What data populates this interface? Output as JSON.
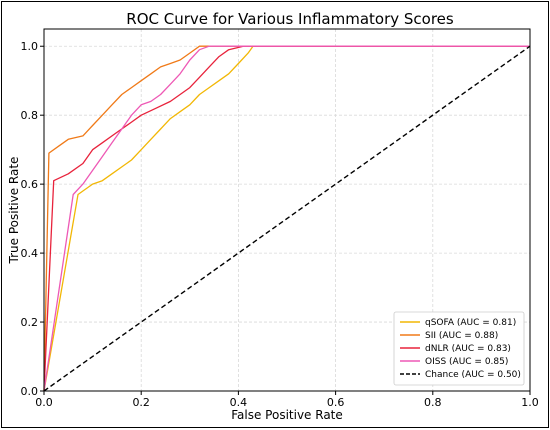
{
  "chart_data": {
    "type": "line",
    "title": "ROC Curve for Various Inflammatory Scores",
    "xlabel": "False Positive Rate",
    "ylabel": "True Positive Rate",
    "xlim": [
      0.0,
      1.0
    ],
    "ylim": [
      0.0,
      1.05
    ],
    "x_ticks": [
      "0.0",
      "0.2",
      "0.4",
      "0.6",
      "0.8",
      "1.0"
    ],
    "y_ticks": [
      "0.0",
      "0.2",
      "0.4",
      "0.6",
      "0.8",
      "1.0"
    ],
    "grid": true,
    "legend_position": "bottom-right",
    "series": [
      {
        "name": "qSOFA (AUC = 0.81)",
        "color": "#f2b705",
        "points": [
          [
            0,
            0
          ],
          [
            0.07,
            0.57
          ],
          [
            0.08,
            0.58
          ],
          [
            0.1,
            0.6
          ],
          [
            0.12,
            0.61
          ],
          [
            0.14,
            0.63
          ],
          [
            0.16,
            0.65
          ],
          [
            0.18,
            0.67
          ],
          [
            0.2,
            0.7
          ],
          [
            0.22,
            0.73
          ],
          [
            0.24,
            0.76
          ],
          [
            0.26,
            0.79
          ],
          [
            0.28,
            0.81
          ],
          [
            0.3,
            0.83
          ],
          [
            0.32,
            0.86
          ],
          [
            0.34,
            0.88
          ],
          [
            0.36,
            0.9
          ],
          [
            0.38,
            0.92
          ],
          [
            0.4,
            0.95
          ],
          [
            0.42,
            0.98
          ],
          [
            0.43,
            1.0
          ],
          [
            1,
            1
          ]
        ]
      },
      {
        "name": "SII (AUC = 0.88)",
        "color": "#f07a18",
        "points": [
          [
            0,
            0
          ],
          [
            0.01,
            0.69
          ],
          [
            0.03,
            0.71
          ],
          [
            0.05,
            0.73
          ],
          [
            0.08,
            0.74
          ],
          [
            0.1,
            0.77
          ],
          [
            0.12,
            0.8
          ],
          [
            0.14,
            0.83
          ],
          [
            0.16,
            0.86
          ],
          [
            0.18,
            0.88
          ],
          [
            0.2,
            0.9
          ],
          [
            0.22,
            0.92
          ],
          [
            0.24,
            0.94
          ],
          [
            0.26,
            0.95
          ],
          [
            0.28,
            0.96
          ],
          [
            0.3,
            0.98
          ],
          [
            0.32,
            1.0
          ],
          [
            1,
            1
          ]
        ]
      },
      {
        "name": "dNLR (AUC = 0.83)",
        "color": "#e8233c",
        "points": [
          [
            0,
            0
          ],
          [
            0.02,
            0.61
          ],
          [
            0.05,
            0.63
          ],
          [
            0.08,
            0.66
          ],
          [
            0.1,
            0.7
          ],
          [
            0.12,
            0.72
          ],
          [
            0.15,
            0.75
          ],
          [
            0.18,
            0.78
          ],
          [
            0.2,
            0.8
          ],
          [
            0.23,
            0.82
          ],
          [
            0.26,
            0.84
          ],
          [
            0.28,
            0.86
          ],
          [
            0.3,
            0.88
          ],
          [
            0.32,
            0.91
          ],
          [
            0.34,
            0.94
          ],
          [
            0.36,
            0.97
          ],
          [
            0.38,
            0.99
          ],
          [
            0.41,
            1.0
          ],
          [
            1,
            1
          ]
        ]
      },
      {
        "name": "OISS (AUC = 0.85)",
        "color": "#ee59b5",
        "points": [
          [
            0,
            0
          ],
          [
            0.06,
            0.57
          ],
          [
            0.08,
            0.6
          ],
          [
            0.1,
            0.64
          ],
          [
            0.12,
            0.68
          ],
          [
            0.14,
            0.72
          ],
          [
            0.16,
            0.76
          ],
          [
            0.18,
            0.8
          ],
          [
            0.2,
            0.83
          ],
          [
            0.22,
            0.84
          ],
          [
            0.24,
            0.86
          ],
          [
            0.26,
            0.89
          ],
          [
            0.28,
            0.92
          ],
          [
            0.3,
            0.96
          ],
          [
            0.32,
            0.99
          ],
          [
            0.34,
            1.0
          ],
          [
            1,
            1
          ]
        ]
      },
      {
        "name": "Chance (AUC = 0.50)",
        "color": "#000000",
        "dashed": true,
        "points": [
          [
            0,
            0
          ],
          [
            1,
            1
          ]
        ]
      }
    ]
  }
}
